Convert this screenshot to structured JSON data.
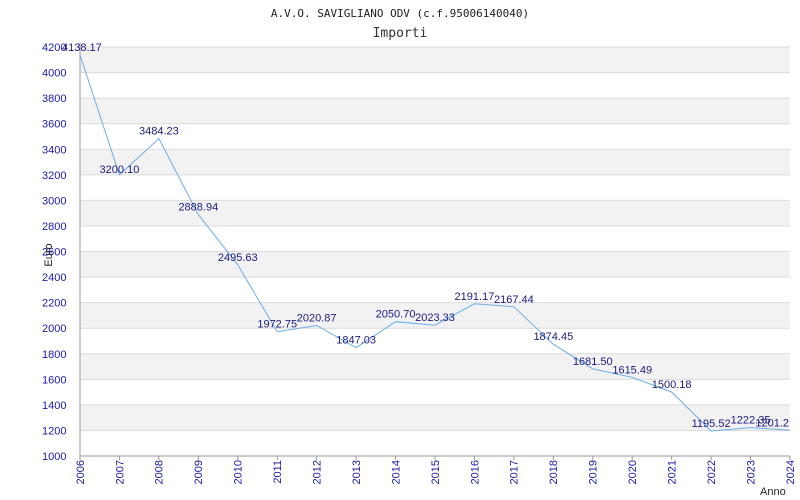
{
  "chart_data": {
    "type": "line",
    "title": "A.V.O. SAVIGLIANO ODV (c.f.95006140040)",
    "subtitle": "Importi",
    "xlabel": "Anno",
    "ylabel": "Euro",
    "ylim": [
      1000,
      4200
    ],
    "ytick_step": 200,
    "x": [
      "2006",
      "2007",
      "2008",
      "2009",
      "2010",
      "2011",
      "2012",
      "2013",
      "2014",
      "2015",
      "2016",
      "2017",
      "2018",
      "2019",
      "2020",
      "2021",
      "2022",
      "2023",
      "2024"
    ],
    "values": [
      4138.17,
      3200.1,
      3484.23,
      2888.94,
      2495.63,
      1972.75,
      2020.87,
      1847.03,
      2050.7,
      2023.33,
      2191.17,
      2167.44,
      1874.45,
      1681.5,
      1615.49,
      1500.18,
      1195.52,
      1222.35,
      1201.2
    ],
    "labels": [
      "4138.17",
      "3200.10",
      "3484.23",
      "2888.94",
      "2495.63",
      "1972.75",
      "2020.87",
      "1847.03",
      "2050.70",
      "2023.33",
      "2191.17",
      "2167.44",
      "1874.45",
      "1681.50",
      "1615.49",
      "1500.18",
      "1195.52",
      "1222.35",
      "1201.2"
    ],
    "line_color": "#6aaee8",
    "band_color": "#f2f2f2",
    "grid": true
  }
}
